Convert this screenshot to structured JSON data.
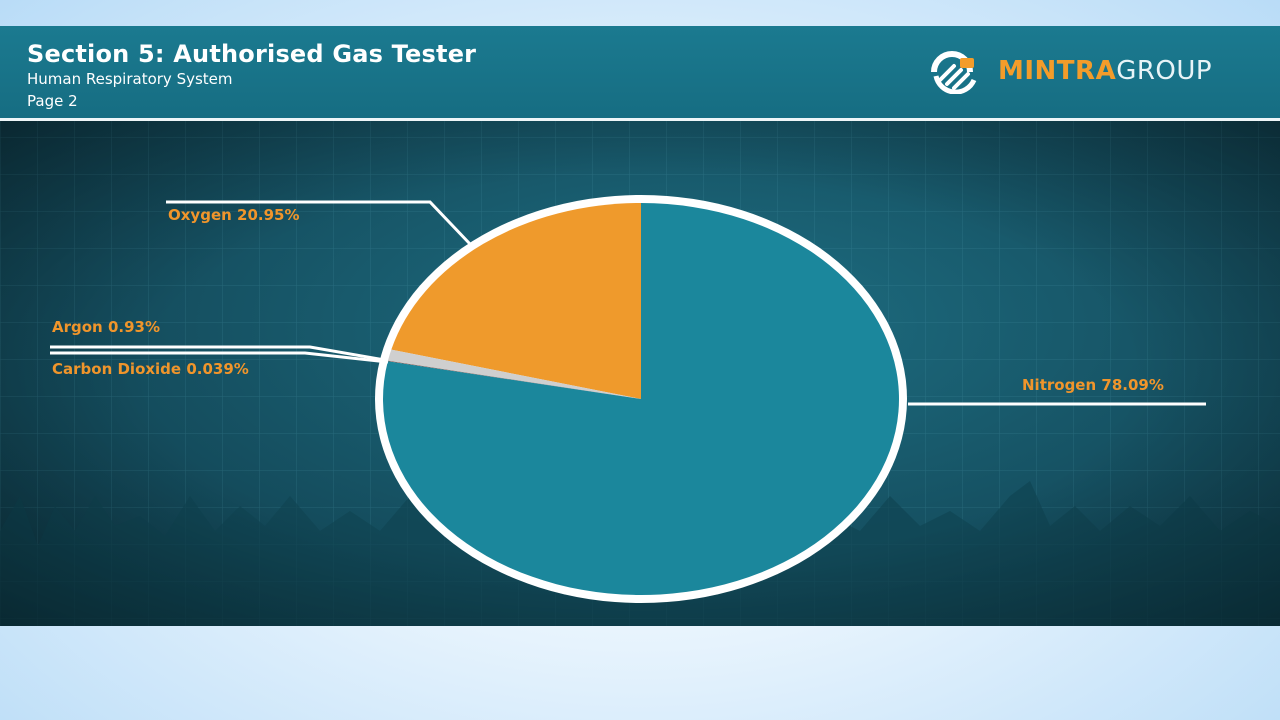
{
  "header": {
    "title": "Section 5: Authorised Gas Tester",
    "subtitle": "Human Respiratory System",
    "page": "Page 2"
  },
  "logo": {
    "icon": "mintra-logo-icon",
    "text_bold": "MINTRA",
    "text_light": "GROUP"
  },
  "colors": {
    "accent_orange": "#f0952b",
    "nitrogen": "#1b879c",
    "oxygen": "#ef9a2c",
    "argon": "#cfcfcf",
    "carbon_dioxide": "#8c4a3e",
    "header_bg": "#1b7a90"
  },
  "chart_data": {
    "type": "pie",
    "title": "",
    "slices": [
      {
        "label": "Oxygen 20.95%",
        "name": "Oxygen",
        "value": 20.95,
        "color": "#ef9a2c"
      },
      {
        "label": "Argon 0.93%",
        "name": "Argon",
        "value": 0.93,
        "color": "#cfcfcf"
      },
      {
        "label": "Carbon Dioxide 0.039%",
        "name": "Carbon Dioxide",
        "value": 0.039,
        "color": "#8c4a3e"
      },
      {
        "label": "Nitrogen 78.09%",
        "name": "Nitrogen",
        "value": 78.09,
        "color": "#1b879c"
      }
    ],
    "start": "12 o'clock",
    "direction": "counter-clockwise",
    "legend": "none",
    "data_labels": "outside with leader lines"
  }
}
